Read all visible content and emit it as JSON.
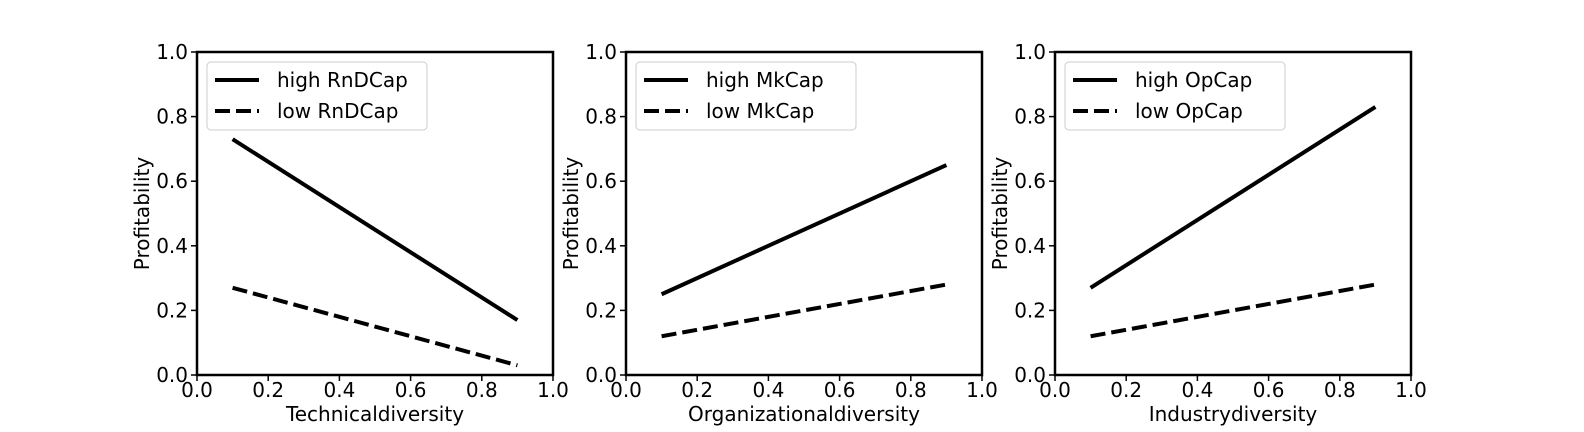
{
  "chart_data": [
    {
      "type": "line",
      "xlabel": "Technicaldiversity",
      "ylabel": "Profitability",
      "xlim": [
        0.0,
        1.0
      ],
      "ylim": [
        0.0,
        1.0
      ],
      "xticks": [
        "0.0",
        "0.2",
        "0.4",
        "0.6",
        "0.8",
        "1.0"
      ],
      "yticks": [
        "0.0",
        "0.2",
        "0.4",
        "0.6",
        "0.8",
        "1.0"
      ],
      "grid": false,
      "legend_position": "top-left",
      "series": [
        {
          "name": "high RnDCap",
          "style": "solid",
          "x": [
            0.1,
            0.9
          ],
          "y": [
            0.73,
            0.17
          ]
        },
        {
          "name": "low RnDCap",
          "style": "dashed",
          "x": [
            0.1,
            0.9
          ],
          "y": [
            0.27,
            0.03
          ]
        }
      ]
    },
    {
      "type": "line",
      "xlabel": "Organizationaldiversity",
      "ylabel": "Profitability",
      "xlim": [
        0.0,
        1.0
      ],
      "ylim": [
        0.0,
        1.0
      ],
      "xticks": [
        "0.0",
        "0.2",
        "0.4",
        "0.6",
        "0.8",
        "1.0"
      ],
      "yticks": [
        "0.0",
        "0.2",
        "0.4",
        "0.6",
        "0.8",
        "1.0"
      ],
      "grid": false,
      "legend_position": "top-left",
      "series": [
        {
          "name": "high MkCap",
          "style": "solid",
          "x": [
            0.1,
            0.9
          ],
          "y": [
            0.25,
            0.65
          ]
        },
        {
          "name": "low MkCap",
          "style": "dashed",
          "x": [
            0.1,
            0.9
          ],
          "y": [
            0.12,
            0.28
          ]
        }
      ]
    },
    {
      "type": "line",
      "xlabel": "Industrydiversity",
      "ylabel": "Profitability",
      "xlim": [
        0.0,
        1.0
      ],
      "ylim": [
        0.0,
        1.0
      ],
      "xticks": [
        "0.0",
        "0.2",
        "0.4",
        "0.6",
        "0.8",
        "1.0"
      ],
      "yticks": [
        "0.0",
        "0.2",
        "0.4",
        "0.6",
        "0.8",
        "1.0"
      ],
      "grid": false,
      "legend_position": "top-left",
      "series": [
        {
          "name": "high OpCap",
          "style": "solid",
          "x": [
            0.1,
            0.9
          ],
          "y": [
            0.27,
            0.83
          ]
        },
        {
          "name": "low OpCap",
          "style": "dashed",
          "x": [
            0.1,
            0.9
          ],
          "y": [
            0.12,
            0.28
          ]
        }
      ]
    }
  ],
  "colors": {
    "line": "#000000",
    "axes": "#000000",
    "legend_frame": "#cccccc",
    "background": "#ffffff"
  }
}
